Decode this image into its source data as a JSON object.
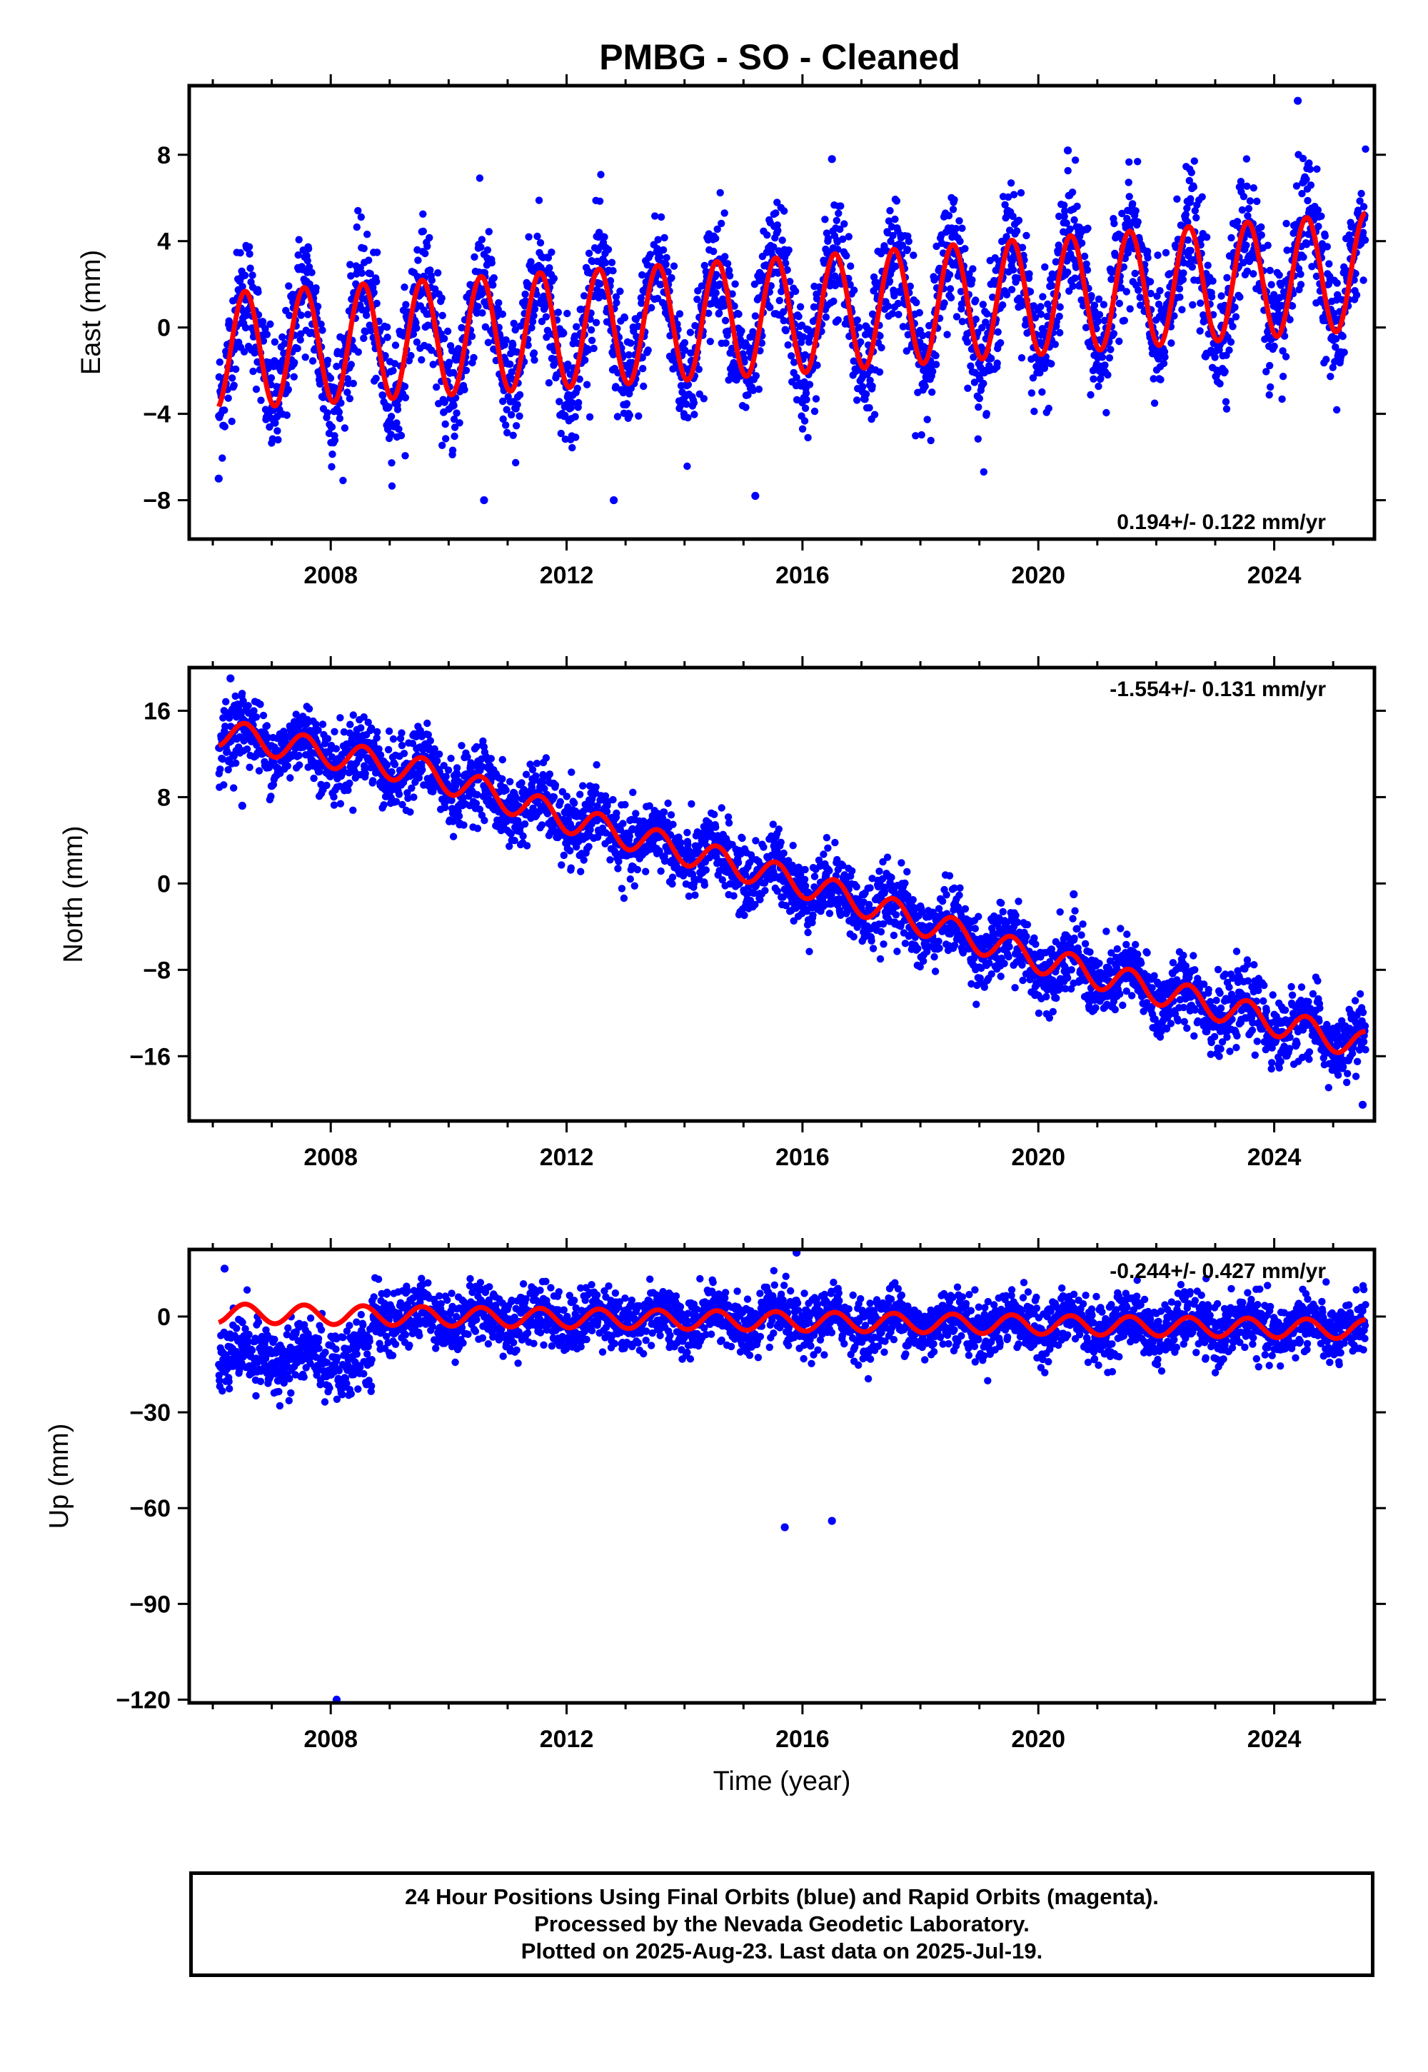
{
  "page_title": "PMBG  - SO - Cleaned",
  "footer": {
    "lines": [
      "24 Hour Positions Using Final Orbits (blue) and Rapid Orbits (magenta).",
      "Processed by the Nevada Geodetic Laboratory.",
      "Plotted on 2025-Aug-23. Last data on 2025-Jul-19."
    ]
  },
  "colors": {
    "points": "#0000ff",
    "model": "#ff0000",
    "frame": "#000000"
  },
  "chart_data": [
    {
      "type": "scatter",
      "ylabel": "East (mm)",
      "xlabel": "",
      "xlim": [
        2005.6,
        2025.7
      ],
      "ylim": [
        -9.8,
        11.2
      ],
      "xticks": [
        2008,
        2012,
        2016,
        2020,
        2024
      ],
      "yticks": [
        -8,
        -4,
        0,
        4,
        8
      ],
      "rate_label": "0.194+/- 0.122 mm/yr",
      "rate_position": "bottom-right",
      "series": [
        {
          "role": "daily positions",
          "color": "#0000ff",
          "x_range": [
            2006.1,
            2025.55
          ],
          "scatter_sd": 1.4
        },
        {
          "role": "model fit",
          "color": "#ff0000",
          "trend": [
            [
              2006.1,
              -1.1
            ],
            [
              2016.0,
              0.6
            ],
            [
              2025.55,
              2.6
            ]
          ],
          "seasonal_amplitude": [
            [
              2006.1,
              2.7
            ],
            [
              2025.55,
              2.7
            ]
          ]
        }
      ],
      "outliers": [
        [
          2006.1,
          -7.0
        ],
        [
          2010.6,
          -8.0
        ],
        [
          2012.8,
          -8.0
        ],
        [
          2015.2,
          -7.8
        ],
        [
          2016.5,
          7.8
        ],
        [
          2020.5,
          8.2
        ],
        [
          2024.4,
          10.5
        ]
      ]
    },
    {
      "type": "scatter",
      "ylabel": "North (mm)",
      "xlabel": "",
      "xlim": [
        2005.6,
        2025.7
      ],
      "ylim": [
        -22,
        20
      ],
      "xticks": [
        2008,
        2012,
        2016,
        2020,
        2024
      ],
      "yticks": [
        -16,
        -8,
        0,
        8,
        16
      ],
      "rate_label": "-1.554+/- 0.131 mm/yr",
      "rate_position": "top-right",
      "series": [
        {
          "role": "daily positions",
          "color": "#0000ff",
          "x_range": [
            2006.1,
            2025.55
          ],
          "scatter_sd": 1.6
        },
        {
          "role": "model fit",
          "color": "#ff0000",
          "trend": [
            [
              2006.1,
              14.0
            ],
            [
              2009.6,
              10.3
            ],
            [
              2012.0,
              6.0
            ],
            [
              2016.0,
              0.0
            ],
            [
              2020.0,
              -7.0
            ],
            [
              2025.5,
              -15.0
            ]
          ],
          "seasonal_amplitude": [
            [
              2006.1,
              1.3
            ],
            [
              2025.55,
              1.3
            ]
          ]
        }
      ],
      "outliers": [
        [
          2006.3,
          19.0
        ],
        [
          2006.5,
          7.2
        ],
        [
          2020.6,
          -1.0
        ],
        [
          2025.5,
          -20.5
        ]
      ]
    },
    {
      "type": "scatter",
      "ylabel": "Up (mm)",
      "xlabel": "Time (year)",
      "xlim": [
        2005.6,
        2025.7
      ],
      "ylim": [
        -121,
        21
      ],
      "xticks": [
        2008,
        2012,
        2016,
        2020,
        2024
      ],
      "yticks": [
        -120,
        -90,
        -60,
        -30,
        0
      ],
      "rate_label": "-0.244+/- 0.427 mm/yr",
      "rate_position": "top-right",
      "series": [
        {
          "role": "daily positions",
          "color": "#0000ff",
          "x_range": [
            2006.1,
            2025.55
          ],
          "scatter_sd": 4.5,
          "offset_interval": [
            [
              2006.1,
              2008.7,
              -14
            ]
          ]
        },
        {
          "role": "model fit",
          "color": "#ff0000",
          "trend": [
            [
              2006.1,
              1.0
            ],
            [
              2025.55,
              -4.0
            ]
          ],
          "seasonal_amplitude": [
            [
              2006.1,
              3.0
            ],
            [
              2025.55,
              3.0
            ]
          ]
        }
      ],
      "outliers": [
        [
          2008.1,
          -120.0
        ],
        [
          2015.7,
          -66.0
        ],
        [
          2016.5,
          -64.0
        ],
        [
          2006.2,
          15.0
        ],
        [
          2015.9,
          20.0
        ]
      ]
    }
  ]
}
